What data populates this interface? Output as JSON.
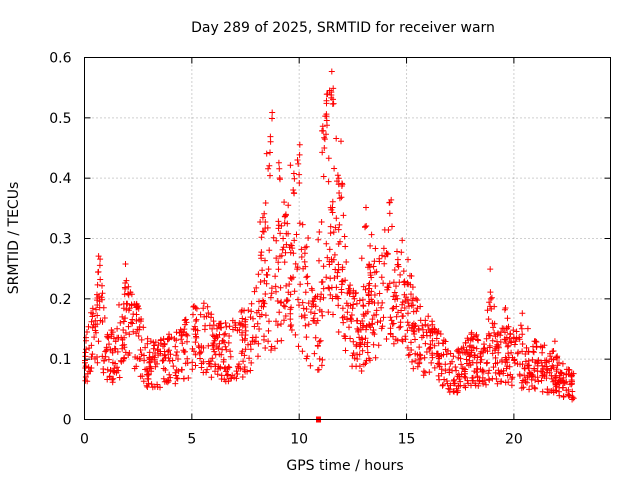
{
  "chart_data": {
    "type": "scatter",
    "title": "Day 289 of 2025, SRMTID for receiver warn",
    "xlabel": "GPS time / hours",
    "ylabel": "SRMTID / TECUs",
    "xlim": [
      0,
      24.5
    ],
    "ylim": [
      0,
      0.6
    ],
    "xticks": [
      "0",
      "5",
      "10",
      "15",
      "20"
    ],
    "yticks": [
      "0",
      "0.1",
      "0.2",
      "0.3",
      "0.4",
      "0.5",
      "0.6"
    ],
    "grid": true,
    "marker": "plus",
    "color": "#ff0000",
    "series": [
      {
        "name": "SRMTID",
        "trend": [
          [
            0.0,
            0.11
          ],
          [
            0.5,
            0.13
          ],
          [
            0.7,
            0.19
          ],
          [
            1.0,
            0.1
          ],
          [
            1.5,
            0.11
          ],
          [
            2.0,
            0.16
          ],
          [
            2.5,
            0.13
          ],
          [
            3.0,
            0.09
          ],
          [
            3.5,
            0.09
          ],
          [
            4.0,
            0.1
          ],
          [
            4.5,
            0.11
          ],
          [
            5.0,
            0.13
          ],
          [
            5.5,
            0.14
          ],
          [
            6.0,
            0.12
          ],
          [
            6.5,
            0.11
          ],
          [
            7.0,
            0.12
          ],
          [
            7.5,
            0.13
          ],
          [
            8.0,
            0.16
          ],
          [
            8.5,
            0.2
          ],
          [
            9.0,
            0.22
          ],
          [
            9.5,
            0.24
          ],
          [
            10.0,
            0.2
          ],
          [
            10.5,
            0.16
          ],
          [
            11.0,
            0.14
          ],
          [
            11.3,
            0.24
          ],
          [
            11.6,
            0.26
          ],
          [
            12.0,
            0.2
          ],
          [
            12.5,
            0.15
          ],
          [
            13.0,
            0.14
          ],
          [
            13.5,
            0.18
          ],
          [
            14.0,
            0.2
          ],
          [
            14.5,
            0.17
          ],
          [
            15.0,
            0.17
          ],
          [
            15.5,
            0.14
          ],
          [
            16.0,
            0.12
          ],
          [
            16.5,
            0.11
          ],
          [
            17.0,
            0.08
          ],
          [
            17.5,
            0.08
          ],
          [
            18.0,
            0.1
          ],
          [
            18.5,
            0.1
          ],
          [
            19.0,
            0.1
          ],
          [
            19.5,
            0.1
          ],
          [
            20.0,
            0.1
          ],
          [
            20.5,
            0.09
          ],
          [
            21.0,
            0.09
          ],
          [
            21.5,
            0.08
          ],
          [
            22.0,
            0.07
          ],
          [
            22.5,
            0.06
          ],
          [
            22.7,
            0.06
          ]
        ],
        "peaks": [
          [
            0.7,
            0.28
          ],
          [
            1.9,
            0.23
          ],
          [
            8.2,
            0.31
          ],
          [
            8.4,
            0.36
          ],
          [
            8.6,
            0.45
          ],
          [
            8.7,
            0.51
          ],
          [
            9.1,
            0.44
          ],
          [
            9.4,
            0.35
          ],
          [
            9.8,
            0.42
          ],
          [
            10.0,
            0.44
          ],
          [
            10.3,
            0.29
          ],
          [
            10.6,
            0.23
          ],
          [
            11.1,
            0.49
          ],
          [
            11.2,
            0.49
          ],
          [
            11.25,
            0.53
          ],
          [
            11.3,
            0.54
          ],
          [
            11.5,
            0.58
          ],
          [
            11.6,
            0.56
          ],
          [
            11.8,
            0.44
          ],
          [
            12.0,
            0.4
          ],
          [
            12.2,
            0.21
          ],
          [
            13.1,
            0.36
          ],
          [
            13.3,
            0.3
          ],
          [
            14.2,
            0.36
          ],
          [
            14.6,
            0.3
          ],
          [
            15.1,
            0.21
          ],
          [
            18.9,
            0.22
          ],
          [
            19.7,
            0.17
          ],
          [
            20.4,
            0.16
          ],
          [
            21.8,
            0.12
          ]
        ],
        "outlier": [
          10.9,
          0.0
        ],
        "x_range": [
          0.0,
          22.8
        ]
      }
    ]
  }
}
